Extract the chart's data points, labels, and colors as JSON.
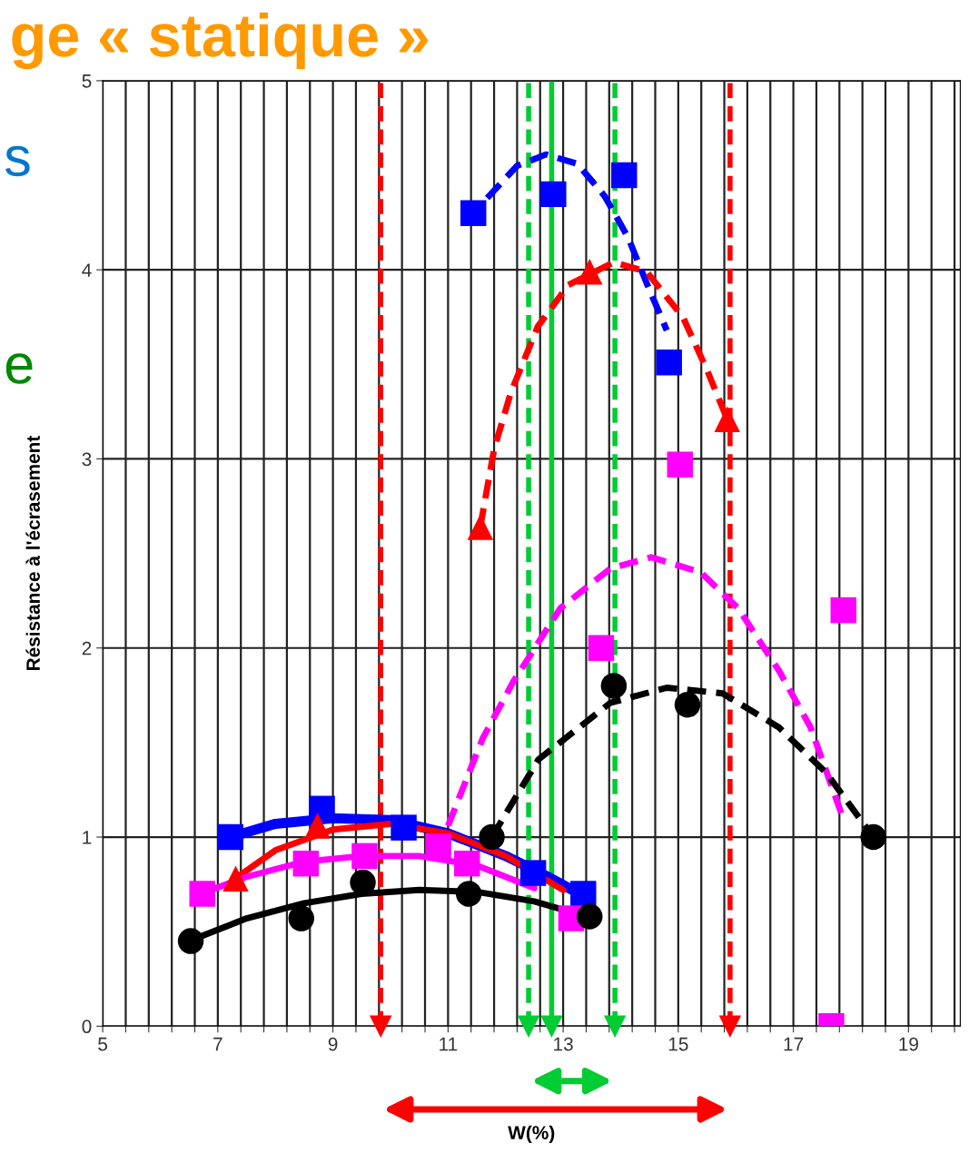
{
  "chart_data": {
    "type": "scatter",
    "title": "ge « statique »",
    "xlabel": "W(%)",
    "ylabel": "Résistance à l'écrasement",
    "annotations": [
      "s",
      "e"
    ],
    "xlim": [
      5,
      19.9
    ],
    "ylim": [
      0,
      5
    ],
    "xticks": [
      5,
      {
        "value": 5.4,
        "label": null
      },
      {
        "value": 5.8,
        "label": null
      },
      {
        "value": 6.2,
        "label": null
      },
      {
        "value": 6.6,
        "label": null
      },
      7,
      {
        "value": 7.4,
        "label": null
      },
      {
        "value": 7.8,
        "label": null
      },
      {
        "value": 8.2,
        "label": null
      },
      {
        "value": 8.6,
        "label": null
      },
      9,
      {
        "value": 9.4,
        "label": null
      },
      {
        "value": 9.8,
        "label": null
      },
      {
        "value": 10.2,
        "label": null
      },
      {
        "value": 10.6,
        "label": null
      },
      11,
      {
        "value": 11.4,
        "label": null
      },
      {
        "value": 11.8,
        "label": null
      },
      {
        "value": 12.2,
        "label": null
      },
      {
        "value": 12.6,
        "label": null
      },
      13,
      {
        "value": 13.4,
        "label": null
      },
      {
        "value": 13.8,
        "label": null
      },
      {
        "value": 14.2,
        "label": null
      },
      {
        "value": 14.6,
        "label": null
      },
      15,
      {
        "value": 15.4,
        "label": null
      },
      {
        "value": 15.8,
        "label": null
      },
      {
        "value": 16.2,
        "label": null
      },
      {
        "value": 16.6,
        "label": null
      },
      17,
      {
        "value": 17.4,
        "label": null
      },
      {
        "value": 17.8,
        "label": null
      },
      {
        "value": 18.2,
        "label": null
      },
      {
        "value": 18.6,
        "label": null
      },
      19,
      {
        "value": 19.4,
        "label": null
      },
      {
        "value": 19.8,
        "label": null
      }
    ],
    "yticks": [
      0,
      1,
      2,
      3,
      4,
      5
    ],
    "grid": true,
    "legend": false,
    "series": [
      {
        "type": "line",
        "color": "#0000ff",
        "line_style": "solid",
        "marker": "none",
        "x": [
          7.22,
          8,
          9,
          10,
          11,
          12,
          12.8,
          13.4
        ],
        "values": [
          1.0,
          1.07,
          1.1,
          1.09,
          1.02,
          0.9,
          0.78,
          0.68
        ]
      },
      {
        "type": "line",
        "color": "#ff0000",
        "line_style": "solid",
        "marker": "none",
        "x": [
          7.3,
          8,
          9,
          10,
          11,
          12,
          13
        ],
        "values": [
          0.78,
          0.93,
          1.04,
          1.07,
          1.02,
          0.9,
          0.72
        ]
      },
      {
        "type": "line",
        "color": "#ff00ff",
        "line_style": "solid",
        "marker": "none",
        "x": [
          6.7,
          7.5,
          8.5,
          9.5,
          10.5,
          11.5,
          12.5
        ],
        "values": [
          0.7,
          0.79,
          0.87,
          0.9,
          0.9,
          0.85,
          0.73
        ]
      },
      {
        "type": "line",
        "color": "#000000",
        "line_style": "solid",
        "marker": "none",
        "x": [
          6.5,
          7.5,
          8.5,
          9.5,
          10.5,
          11.5,
          12.5,
          13.4
        ],
        "values": [
          0.45,
          0.57,
          0.65,
          0.7,
          0.72,
          0.71,
          0.66,
          0.58
        ]
      },
      {
        "type": "line",
        "color": "#0000ff",
        "line_style": "dashed",
        "marker": "none",
        "x": [
          11.68,
          12.2,
          12.7,
          13.25,
          13.72,
          14.13,
          14.45,
          14.8
        ],
        "values": [
          4.38,
          4.55,
          4.61,
          4.56,
          4.39,
          4.17,
          3.93,
          3.68
        ]
      },
      {
        "type": "line",
        "color": "#ff0000",
        "line_style": "dashed",
        "marker": "none",
        "x": [
          11.56,
          11.8,
          12.09,
          12.56,
          13.09,
          13.88,
          14.45,
          15.08,
          15.5,
          15.85
        ],
        "values": [
          2.64,
          3.05,
          3.35,
          3.7,
          3.92,
          4.04,
          3.99,
          3.75,
          3.47,
          3.21
        ]
      },
      {
        "type": "line",
        "color": "#ff00ff",
        "line_style": "dashed",
        "marker": "none",
        "x": [
          11.0,
          11.6,
          12.13,
          12.95,
          13.82,
          14.53,
          15.39,
          16.04,
          16.75,
          17.3,
          17.84
        ],
        "values": [
          1.06,
          1.52,
          1.82,
          2.21,
          2.42,
          2.48,
          2.4,
          2.21,
          1.88,
          1.58,
          1.12
        ]
      },
      {
        "type": "line",
        "color": "#000000",
        "line_style": "dashed",
        "marker": "none",
        "x": [
          11.76,
          12.57,
          13.82,
          14.8,
          15.77,
          16.75,
          17.57,
          18.39
        ],
        "values": [
          1.0,
          1.41,
          1.71,
          1.79,
          1.76,
          1.58,
          1.34,
          1.0
        ]
      },
      {
        "color": "#0000ff",
        "marker": "square",
        "x": [
          7.22,
          8.81,
          10.23,
          12.48,
          13.35,
          11.44,
          12.83,
          14.06,
          14.84
        ],
        "values": [
          1.0,
          1.15,
          1.05,
          0.81,
          0.7,
          4.3,
          4.4,
          4.5,
          3.51
        ]
      },
      {
        "color": "#ff0000",
        "marker": "triangle",
        "x": [
          7.31,
          8.73,
          11.56,
          13.46,
          15.85
        ],
        "values": [
          0.78,
          1.06,
          2.64,
          3.99,
          3.21
        ]
      },
      {
        "color": "#ff00ff",
        "marker": "square",
        "x": [
          6.73,
          8.53,
          9.55,
          10.83,
          11.33,
          13.14,
          13.66,
          15.03,
          17.87,
          17.66
        ],
        "values": [
          0.7,
          0.86,
          0.9,
          0.95,
          0.86,
          0.57,
          2.0,
          2.97,
          2.2,
          0.0
        ]
      },
      {
        "color": "#000000",
        "marker": "circle",
        "x": [
          6.53,
          8.45,
          9.52,
          11.36,
          13.46,
          11.76,
          13.88,
          15.16,
          18.39
        ],
        "values": [
          0.45,
          0.57,
          0.76,
          0.7,
          0.58,
          1.0,
          1.8,
          1.7,
          1.0
        ]
      }
    ],
    "ref_lines": [
      {
        "axis": "x",
        "value": 9.83,
        "color": "#ff0000",
        "line_style": "dashed"
      },
      {
        "axis": "x",
        "value": 15.9,
        "color": "#ff0000",
        "line_style": "dashed"
      },
      {
        "axis": "x",
        "value": 12.4,
        "color": "#00cc33",
        "line_style": "dashed"
      },
      {
        "axis": "x",
        "value": 12.8,
        "color": "#00cc33",
        "line_style": "solid"
      },
      {
        "axis": "x",
        "value": 13.9,
        "color": "#00cc33",
        "line_style": "dashed"
      }
    ]
  }
}
